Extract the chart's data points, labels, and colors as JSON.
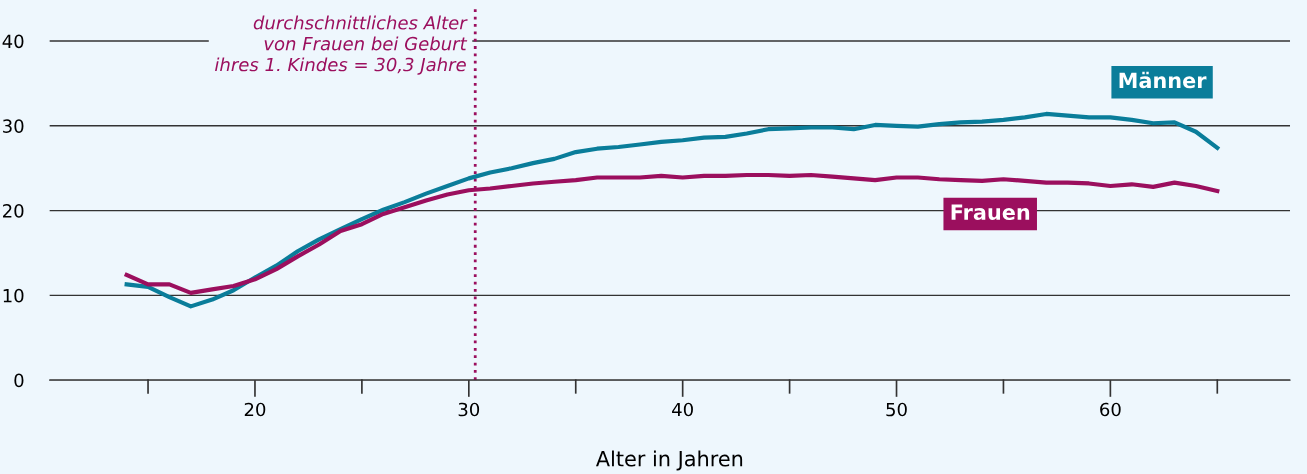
{
  "chart_data": {
    "type": "line",
    "xlabel": "Alter in Jahren",
    "x": [
      14,
      15,
      16,
      17,
      18,
      19,
      20,
      21,
      22,
      23,
      24,
      25,
      26,
      27,
      28,
      29,
      30,
      31,
      32,
      33,
      34,
      35,
      36,
      37,
      38,
      39,
      40,
      41,
      42,
      43,
      44,
      45,
      46,
      47,
      48,
      49,
      50,
      51,
      52,
      53,
      54,
      55,
      56,
      57,
      58,
      59,
      60,
      61,
      62,
      63,
      64,
      65
    ],
    "series": [
      {
        "name": "Männer",
        "color": "#0a7d9a",
        "values": [
          11.3,
          11.0,
          9.8,
          8.7,
          9.5,
          10.6,
          12.1,
          13.5,
          15.2,
          16.6,
          17.8,
          19.0,
          20.1,
          21.0,
          22.0,
          22.9,
          23.8,
          24.5,
          25.0,
          25.6,
          26.1,
          26.9,
          27.3,
          27.5,
          27.8,
          28.1,
          28.3,
          28.6,
          28.7,
          29.1,
          29.6,
          29.7,
          29.8,
          29.8,
          29.6,
          30.1,
          30.0,
          29.9,
          30.2,
          30.4,
          30.5,
          30.7,
          31.0,
          31.4,
          31.2,
          31.0,
          31.0,
          30.7,
          30.3,
          30.4,
          29.3,
          27.4
        ]
      },
      {
        "name": "Frauen",
        "color": "#9b0f5e",
        "values": [
          12.4,
          11.3,
          11.3,
          10.3,
          10.7,
          11.1,
          11.9,
          13.1,
          14.6,
          16.0,
          17.6,
          18.4,
          19.6,
          20.4,
          21.2,
          21.9,
          22.4,
          22.6,
          22.9,
          23.2,
          23.4,
          23.6,
          23.9,
          23.9,
          23.9,
          24.1,
          23.9,
          24.1,
          24.1,
          24.2,
          24.2,
          24.1,
          24.2,
          24.0,
          23.8,
          23.6,
          23.9,
          23.9,
          23.7,
          23.6,
          23.5,
          23.7,
          23.5,
          23.3,
          23.3,
          23.2,
          22.9,
          23.1,
          22.8,
          23.3,
          22.9,
          22.3
        ]
      }
    ],
    "xlim": [
      10.4,
      68.4
    ],
    "ylim": [
      0,
      44
    ],
    "xticks": [
      {
        "value": 15,
        "label": null
      },
      20,
      {
        "value": 25,
        "label": null
      },
      30,
      {
        "value": 35,
        "label": null
      },
      40,
      {
        "value": 45,
        "label": null
      },
      50,
      {
        "value": 55,
        "label": null
      },
      60,
      {
        "value": 65,
        "label": null
      }
    ],
    "yticks": [
      0,
      10,
      20,
      30,
      40
    ],
    "grid": "y",
    "legend": false,
    "marker": "none",
    "line_style": "solid",
    "ref_lines": [
      {
        "axis": "x",
        "value": 30.3,
        "label": "durchschnittliches Alter\nvon Frauen bei Geburt\nihres 1. Kindes = 30,3 Jahre",
        "color": "#9b0f5e",
        "line_style": "dotted"
      }
    ]
  }
}
